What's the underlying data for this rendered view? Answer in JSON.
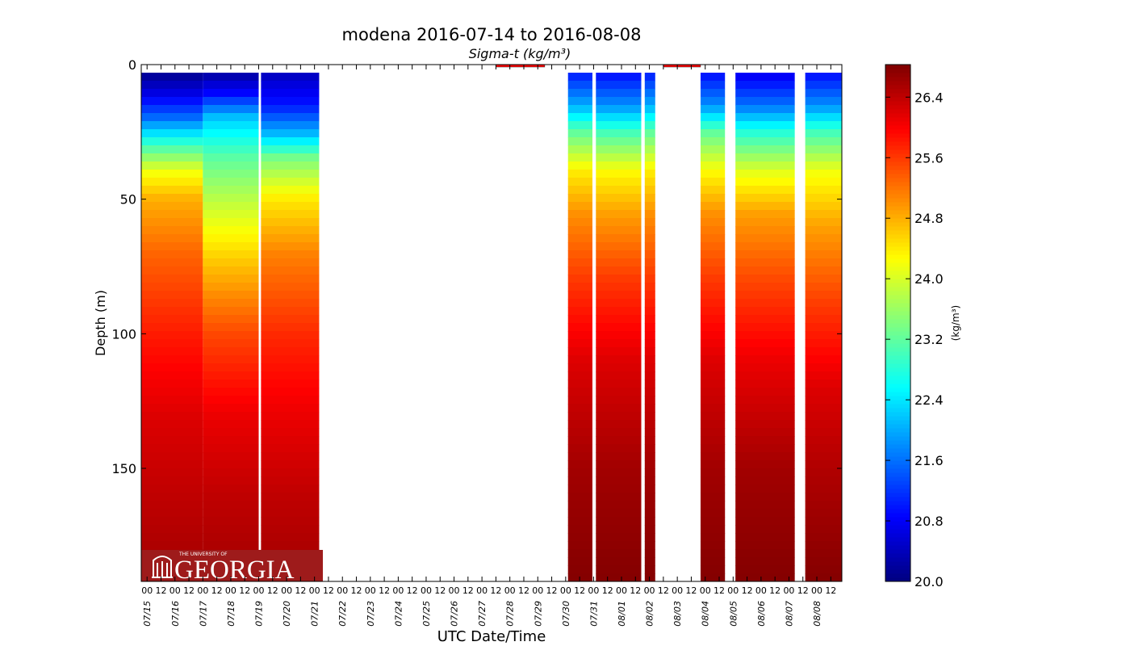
{
  "chart_data": {
    "type": "scatter",
    "title": "modena 2016-07-14 to 2016-08-08",
    "subtitle": "Sigma-t (kg/m³)",
    "xlabel": "UTC Date/Time",
    "ylabel": "Depth (m)",
    "xlim": [
      "2016-07-14T19:00",
      "2016-08-08T21:30"
    ],
    "ylim": [
      192,
      0
    ],
    "y_inverted": true,
    "yticks": [
      0,
      50,
      100,
      150
    ],
    "x_hour_labels": [
      "00",
      "12"
    ],
    "x_date_labels": [
      "07/15",
      "07/16",
      "07/17",
      "07/18",
      "07/19",
      "07/20",
      "07/21",
      "07/22",
      "07/23",
      "07/24",
      "07/25",
      "07/26",
      "07/27",
      "07/28",
      "07/29",
      "07/30",
      "07/31",
      "08/01",
      "08/02",
      "08/03",
      "08/04",
      "08/05",
      "08/06",
      "08/07",
      "08/08"
    ],
    "colormap": "jet",
    "colorbar": {
      "label": "(kg/m³)",
      "range": [
        20.0,
        26.83
      ],
      "ticks": [
        "20.0",
        "20.8",
        "21.6",
        "22.4",
        "23.2",
        "24.0",
        "24.8",
        "25.6",
        "26.4"
      ]
    },
    "segments": [
      {
        "start": "2016-07-14T19:00",
        "end": "2016-07-17T00:00",
        "top": 3,
        "bottom": 192,
        "profile": [
          [
            3,
            20.1
          ],
          [
            10,
            20.6
          ],
          [
            20,
            21.6
          ],
          [
            30,
            23.0
          ],
          [
            40,
            24.2
          ],
          [
            50,
            24.8
          ],
          [
            70,
            25.3
          ],
          [
            100,
            25.8
          ],
          [
            130,
            26.2
          ],
          [
            160,
            26.4
          ],
          [
            192,
            26.6
          ]
        ]
      },
      {
        "start": "2016-07-17T00:00",
        "end": "2016-07-19T00:00",
        "top": 3,
        "bottom": 192,
        "profile": [
          [
            3,
            20.2
          ],
          [
            10,
            20.8
          ],
          [
            20,
            22.2
          ],
          [
            35,
            23.2
          ],
          [
            55,
            24.0
          ],
          [
            75,
            24.7
          ],
          [
            100,
            25.5
          ],
          [
            130,
            26.1
          ],
          [
            160,
            26.4
          ],
          [
            192,
            26.6
          ]
        ]
      },
      {
        "start": "2016-07-19T02:00",
        "end": "2016-07-21T04:00",
        "top": 3,
        "bottom": 192,
        "profile": [
          [
            3,
            20.4
          ],
          [
            15,
            21.0
          ],
          [
            25,
            22.0
          ],
          [
            35,
            23.4
          ],
          [
            50,
            24.4
          ],
          [
            70,
            25.1
          ],
          [
            100,
            25.7
          ],
          [
            130,
            26.1
          ],
          [
            160,
            26.4
          ],
          [
            192,
            26.6
          ]
        ]
      },
      {
        "start": "2016-07-30T02:00",
        "end": "2016-07-30T23:00",
        "top": 3,
        "bottom": 192,
        "profile": [
          [
            3,
            21.0
          ],
          [
            15,
            22.0
          ],
          [
            25,
            23.2
          ],
          [
            40,
            24.4
          ],
          [
            55,
            25.0
          ],
          [
            80,
            25.6
          ],
          [
            110,
            26.2
          ],
          [
            150,
            26.6
          ],
          [
            192,
            26.8
          ]
        ]
      },
      {
        "start": "2016-07-31T02:00",
        "end": "2016-08-01T17:00",
        "top": 3,
        "bottom": 192,
        "profile": [
          [
            3,
            20.9
          ],
          [
            15,
            21.8
          ],
          [
            25,
            23.0
          ],
          [
            40,
            24.3
          ],
          [
            55,
            24.9
          ],
          [
            80,
            25.6
          ],
          [
            110,
            26.2
          ],
          [
            150,
            26.6
          ],
          [
            192,
            26.8
          ]
        ]
      },
      {
        "start": "2016-08-01T20:00",
        "end": "2016-08-02T05:00",
        "top": 3,
        "bottom": 192,
        "profile": [
          [
            3,
            21.0
          ],
          [
            15,
            22.0
          ],
          [
            25,
            23.2
          ],
          [
            40,
            24.4
          ],
          [
            55,
            25.0
          ],
          [
            80,
            25.6
          ],
          [
            110,
            26.2
          ],
          [
            150,
            26.6
          ],
          [
            192,
            26.8
          ]
        ]
      },
      {
        "start": "2016-08-03T20:00",
        "end": "2016-08-04T17:00",
        "top": 3,
        "bottom": 192,
        "profile": [
          [
            3,
            20.9
          ],
          [
            15,
            21.8
          ],
          [
            25,
            23.2
          ],
          [
            40,
            24.3
          ],
          [
            55,
            25.0
          ],
          [
            80,
            25.6
          ],
          [
            110,
            26.2
          ],
          [
            150,
            26.6
          ],
          [
            192,
            26.8
          ]
        ]
      },
      {
        "start": "2016-08-05T02:00",
        "end": "2016-08-07T05:00",
        "top": 3,
        "bottom": 192,
        "profile": [
          [
            3,
            20.7
          ],
          [
            15,
            21.6
          ],
          [
            25,
            22.8
          ],
          [
            40,
            24.1
          ],
          [
            55,
            24.9
          ],
          [
            80,
            25.5
          ],
          [
            110,
            26.1
          ],
          [
            150,
            26.6
          ],
          [
            192,
            26.8
          ]
        ]
      },
      {
        "start": "2016-08-07T14:00",
        "end": "2016-08-08T21:30",
        "top": 3,
        "bottom": 192,
        "profile": [
          [
            3,
            20.9
          ],
          [
            15,
            21.8
          ],
          [
            25,
            23.0
          ],
          [
            40,
            24.2
          ],
          [
            60,
            24.9
          ],
          [
            90,
            25.6
          ],
          [
            120,
            26.2
          ],
          [
            150,
            26.5
          ],
          [
            192,
            26.8
          ]
        ]
      }
    ],
    "surface_points": [
      {
        "start": "2016-07-27T12:00",
        "end": "2016-07-29T06:00",
        "depth": 0.5,
        "value": 26.0
      },
      {
        "start": "2016-08-02T12:00",
        "end": "2016-08-03T20:00",
        "depth": 0.5,
        "value": 26.0
      }
    ]
  },
  "logo": {
    "line1": "THE UNIVERSITY OF",
    "line2": "GEORGIA",
    "color": "#9e1b1b"
  }
}
